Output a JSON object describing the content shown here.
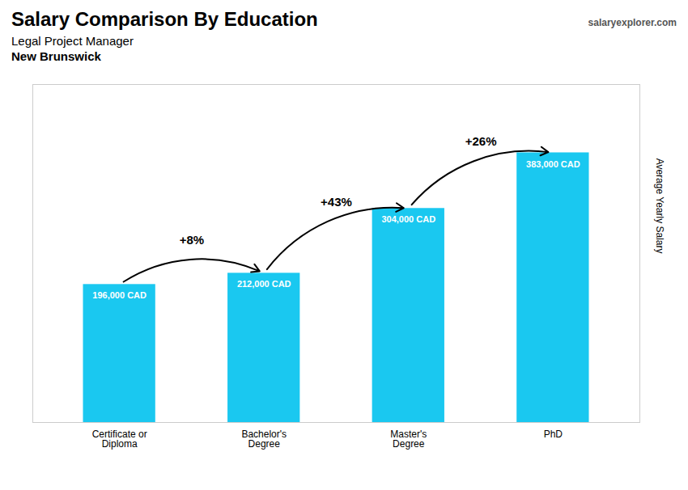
{
  "chart_data": {
    "type": "bar",
    "title": "Salary Comparison By Education",
    "subtitle": "Legal Project Manager",
    "location": "New Brunswick",
    "source": "salaryexplorer.com",
    "ylabel": "Average Yearly Salary",
    "categories": [
      "Certificate or\nDiploma",
      "Bachelor's\nDegree",
      "Master's\nDegree",
      "PhD"
    ],
    "values": [
      196000,
      212000,
      304000,
      383000
    ],
    "value_labels": [
      "196,000 CAD",
      "212,000 CAD",
      "304,000 CAD",
      "383,000 CAD"
    ],
    "data_labels": true,
    "annotations": [
      "+8%",
      "+43%",
      "+26%"
    ],
    "color": "#1ac8f0",
    "ylim": [
      0,
      480000
    ],
    "grid": false,
    "tick_labels": "x"
  }
}
